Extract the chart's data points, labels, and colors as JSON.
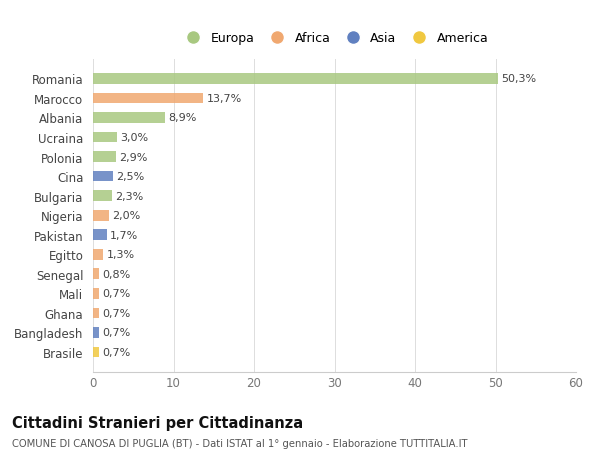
{
  "countries": [
    "Brasile",
    "Bangladesh",
    "Ghana",
    "Mali",
    "Senegal",
    "Egitto",
    "Pakistan",
    "Nigeria",
    "Bulgaria",
    "Cina",
    "Polonia",
    "Ucraina",
    "Albania",
    "Marocco",
    "Romania"
  ],
  "values": [
    0.7,
    0.7,
    0.7,
    0.7,
    0.8,
    1.3,
    1.7,
    2.0,
    2.3,
    2.5,
    2.9,
    3.0,
    8.9,
    13.7,
    50.3
  ],
  "labels": [
    "0,7%",
    "0,7%",
    "0,7%",
    "0,7%",
    "0,8%",
    "1,3%",
    "1,7%",
    "2,0%",
    "2,3%",
    "2,5%",
    "2,9%",
    "3,0%",
    "8,9%",
    "13,7%",
    "50,3%"
  ],
  "continents": [
    "America",
    "Asia",
    "Africa",
    "Africa",
    "Africa",
    "Africa",
    "Asia",
    "Africa",
    "Europa",
    "Asia",
    "Europa",
    "Europa",
    "Europa",
    "Africa",
    "Europa"
  ],
  "colors": {
    "Europa": "#a8c880",
    "Africa": "#f0a870",
    "Asia": "#6080c0",
    "America": "#f0c840"
  },
  "legend_labels": [
    "Europa",
    "Africa",
    "Asia",
    "America"
  ],
  "legend_colors": [
    "#a8c880",
    "#f0a870",
    "#6080c0",
    "#f0c840"
  ],
  "xlim": [
    0,
    60
  ],
  "xticks": [
    0,
    10,
    20,
    30,
    40,
    50,
    60
  ],
  "title": "Cittadini Stranieri per Cittadinanza",
  "subtitle": "COMUNE DI CANOSA DI PUGLIA (BT) - Dati ISTAT al 1° gennaio - Elaborazione TUTTITALIA.IT",
  "bg_color": "#ffffff",
  "bar_height": 0.55
}
